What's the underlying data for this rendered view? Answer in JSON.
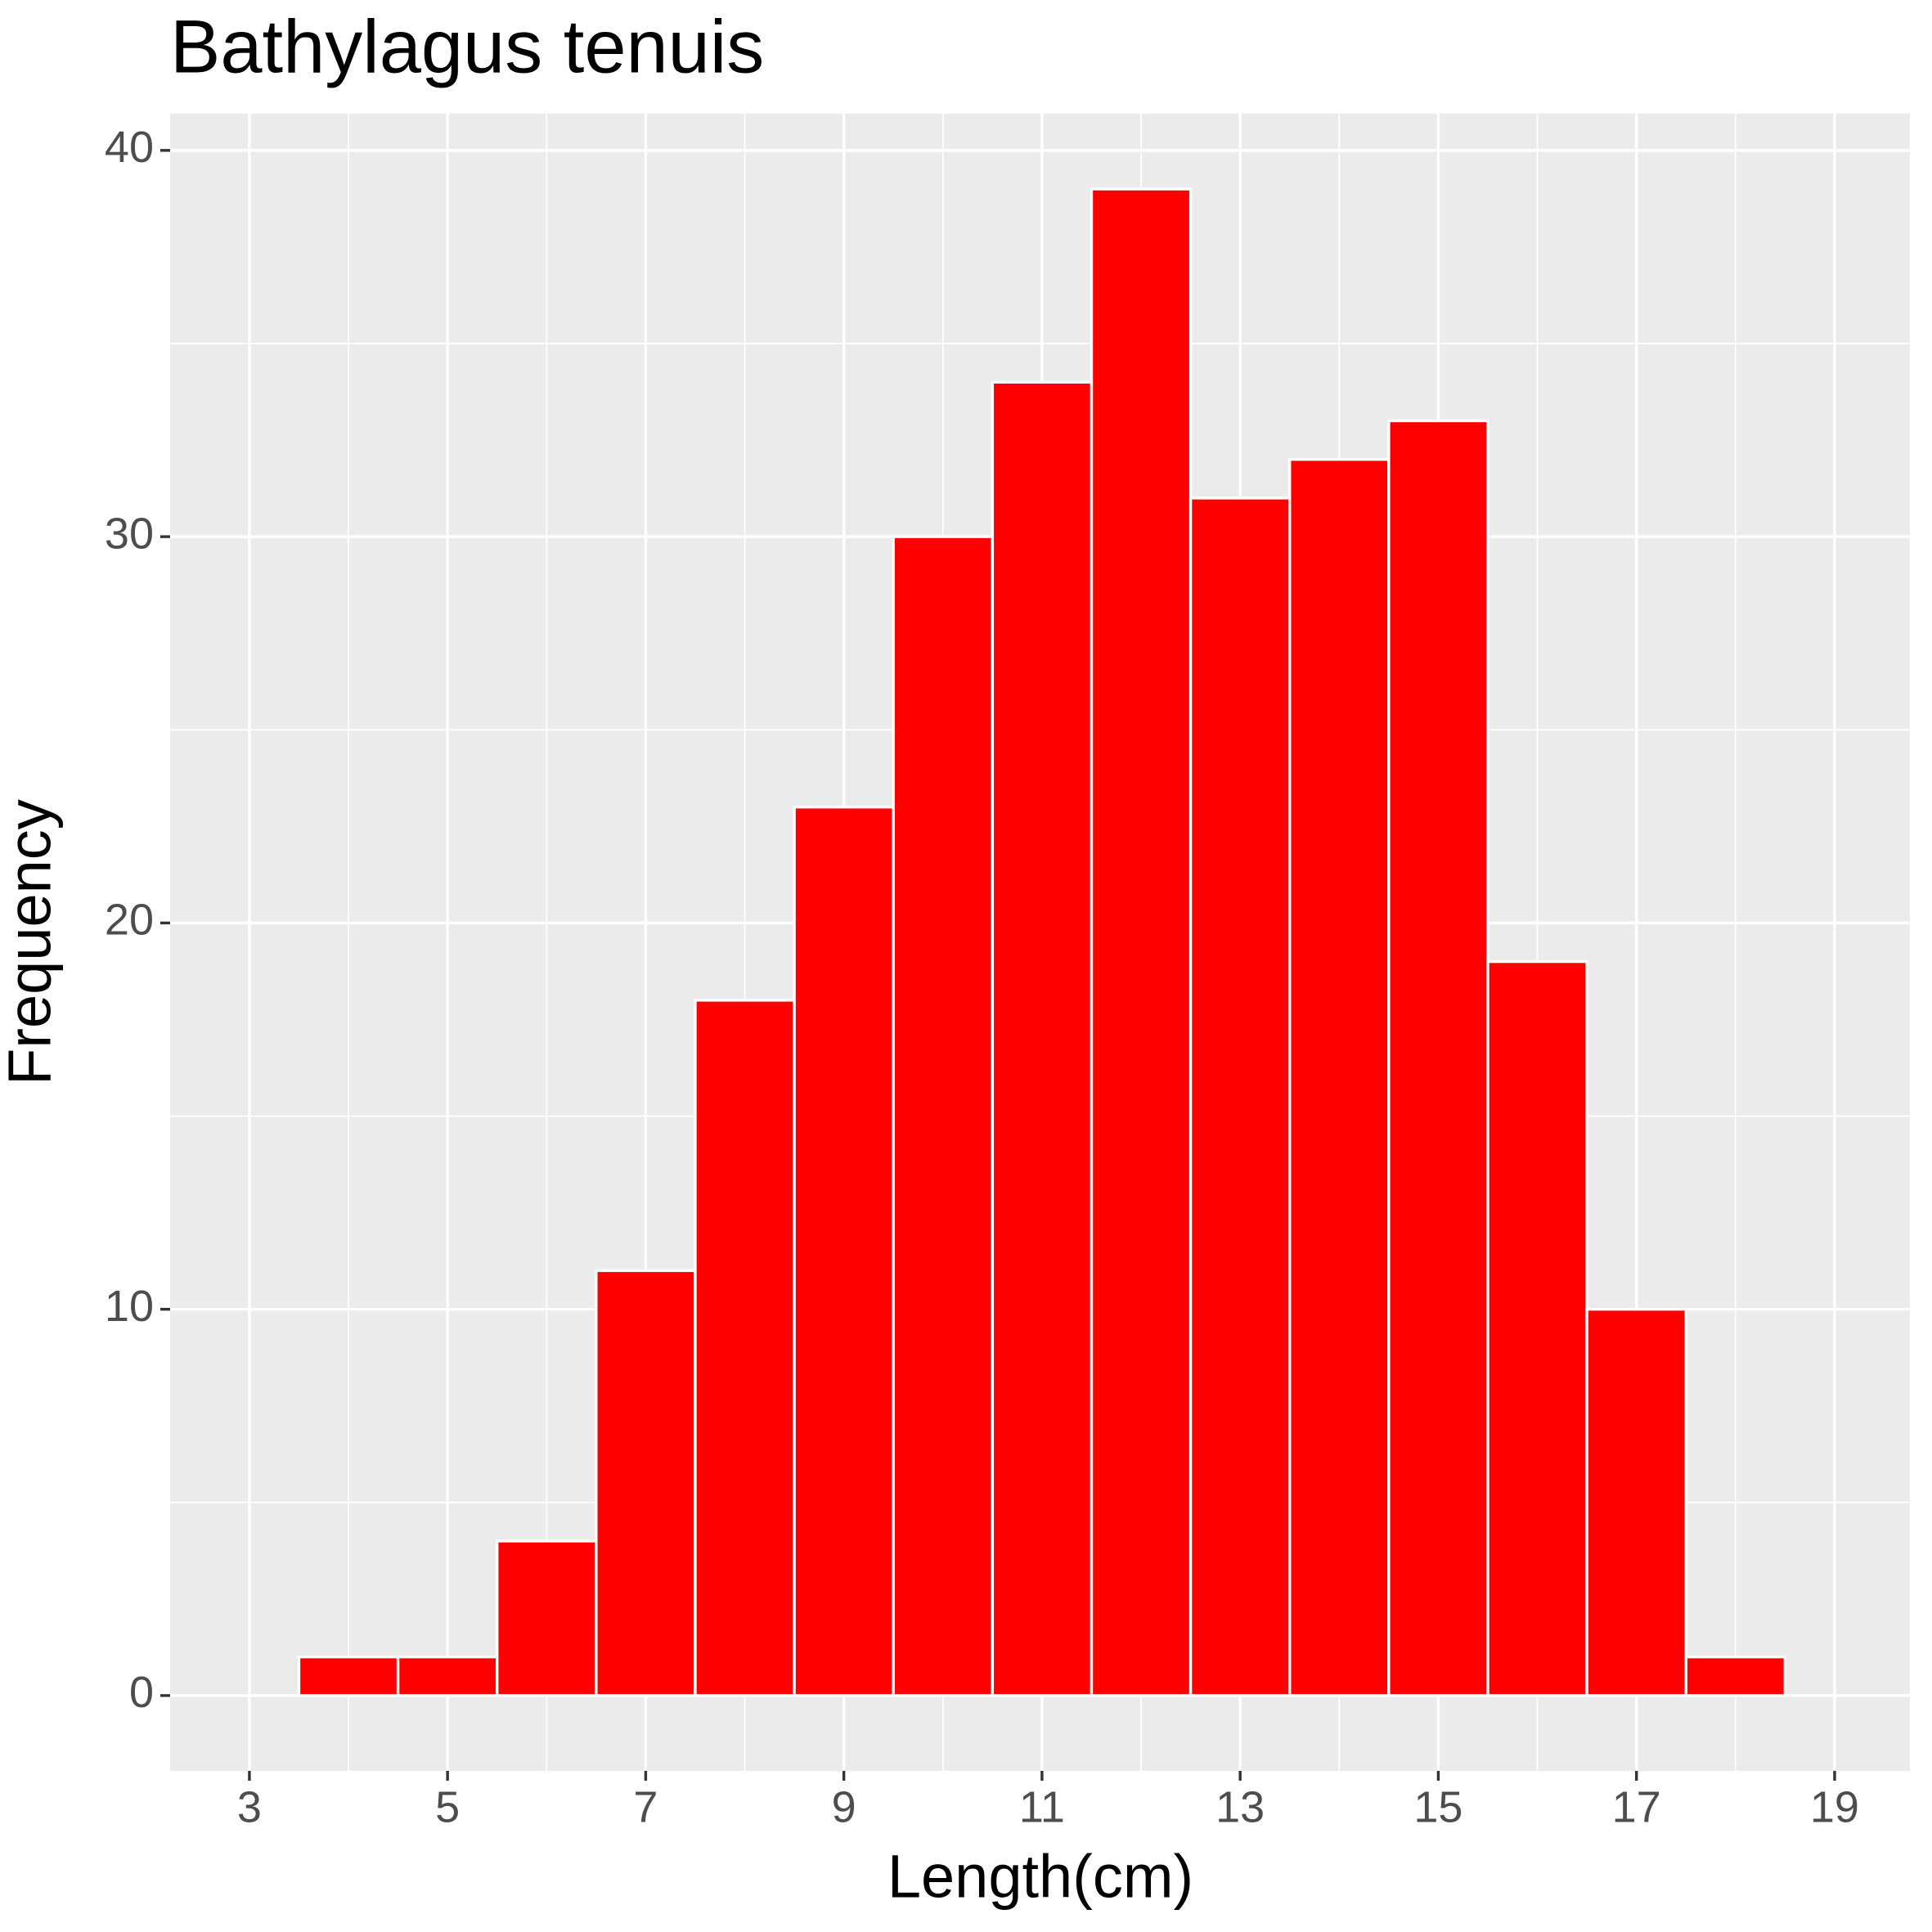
{
  "chart_data": {
    "type": "histogram",
    "title": "Bathylagus tenuis",
    "xlabel": "Length(cm)",
    "ylabel": "Frequency",
    "bins": [
      3.5,
      4.5,
      5.5,
      6.5,
      7.5,
      8.5,
      9.5,
      10.5,
      11.5,
      12.5,
      13.5,
      14.5,
      15.5,
      16.5,
      17.5,
      18.5
    ],
    "values": [
      1,
      1,
      4,
      11,
      18,
      23,
      30,
      34,
      39,
      31,
      32,
      33,
      19,
      10,
      1
    ],
    "color": "#ff0000",
    "edgecolor": "#ffffff",
    "xlim": [
      2.2,
      19.76
    ],
    "ylim": [
      -1.95,
      40.95
    ],
    "xticks": [
      3,
      5,
      7,
      9,
      11,
      13,
      15,
      17,
      19
    ],
    "yticks": [
      0,
      10,
      20,
      30,
      40
    ],
    "xminor": [
      4,
      6,
      8,
      10,
      12,
      14,
      16,
      18
    ],
    "yminor": [
      5,
      15,
      25,
      35
    ],
    "grid": true
  }
}
